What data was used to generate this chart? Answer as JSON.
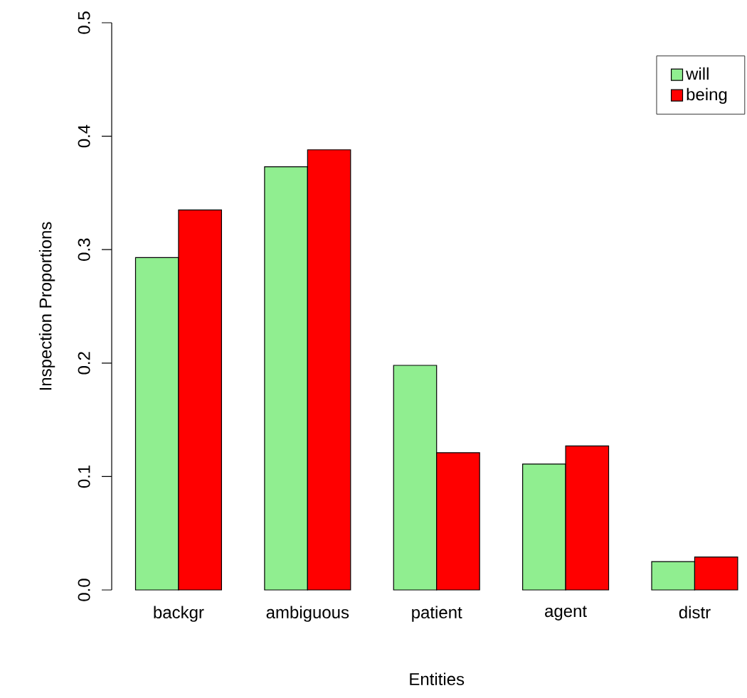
{
  "chart_data": {
    "type": "bar",
    "xlabel": "Entities",
    "ylabel": "Inspection Proportions",
    "categories": [
      "backgr",
      "ambiguous",
      "patient",
      "agent",
      "distr"
    ],
    "series": [
      {
        "name": "will",
        "color": "#90ee90",
        "values": [
          0.293,
          0.373,
          0.198,
          0.111,
          0.025
        ]
      },
      {
        "name": "being",
        "color": "#ff0000",
        "values": [
          0.335,
          0.388,
          0.121,
          0.127,
          0.029
        ]
      }
    ],
    "ylim": [
      0,
      0.5
    ],
    "yticks": [
      {
        "value": 0,
        "label": "0.0"
      },
      0.1,
      0.2,
      0.3,
      0.4,
      0.5
    ],
    "legend": "top right"
  }
}
